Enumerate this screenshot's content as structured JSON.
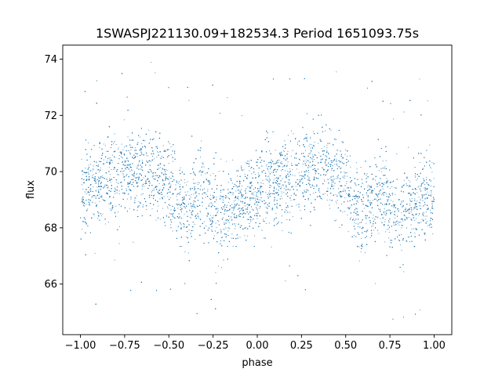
{
  "chart_data": {
    "type": "scatter",
    "title": "1SWASPJ221130.09+182534.3 Period 1651093.75s",
    "xlabel": "phase",
    "ylabel": "flux",
    "xlim": [
      -1.1,
      1.1
    ],
    "ylim": [
      64.2,
      74.5
    ],
    "xticks": [
      -1.0,
      -0.75,
      -0.5,
      -0.25,
      0.0,
      0.25,
      0.5,
      0.75,
      1.0
    ],
    "xtick_labels": [
      "−1.00",
      "−0.75",
      "−0.50",
      "−0.25",
      "0.00",
      "0.25",
      "0.50",
      "0.75",
      "1.00"
    ],
    "yticks": [
      66,
      68,
      70,
      72,
      74
    ],
    "ytick_labels": [
      "66",
      "68",
      "70",
      "72",
      "74"
    ],
    "grid": false,
    "color": "#1f77b4",
    "series": [
      {
        "x_range": [
          -1.0,
          1.0
        ],
        "trend": {
          "phase": [
            -1.0,
            -0.9,
            -0.8,
            -0.7,
            -0.6,
            -0.5,
            -0.45,
            -0.4,
            -0.35,
            -0.3,
            -0.25,
            -0.2,
            -0.1,
            0.0,
            0.1,
            0.2,
            0.3,
            0.4,
            0.5,
            0.55,
            0.6,
            0.65,
            0.7,
            0.75,
            0.8,
            0.9,
            1.0
          ],
          "flux": [
            69.1,
            69.6,
            69.8,
            70.1,
            70.0,
            69.6,
            69.0,
            68.5,
            69.0,
            69.4,
            68.7,
            68.5,
            69.0,
            69.1,
            69.6,
            69.8,
            70.1,
            70.0,
            69.6,
            69.0,
            68.5,
            69.0,
            69.4,
            68.7,
            68.5,
            69.0,
            69.1
          ]
        },
        "scatter_sd": 0.75
      }
    ]
  }
}
